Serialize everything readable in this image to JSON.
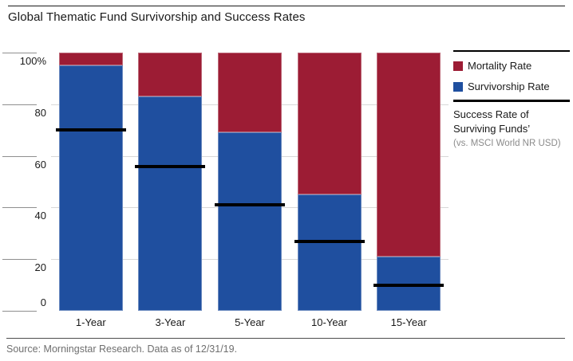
{
  "chart_data": {
    "type": "bar",
    "stacked": true,
    "title": "Global Thematic Fund Survivorship and Success Rates",
    "source": "Source: Morningstar Research. Data as of 12/31/19.",
    "categories": [
      "1-Year",
      "3-Year",
      "5-Year",
      "10-Year",
      "15-Year"
    ],
    "series": [
      {
        "name": "Survivorship Rate",
        "color": "#1F4F9F",
        "values": [
          95,
          83,
          69,
          45,
          21
        ]
      },
      {
        "name": "Mortality Rate",
        "color": "#9C1C34",
        "values": [
          5,
          17,
          31,
          55,
          79
        ]
      }
    ],
    "marker_series": {
      "name": "Success Rate of Surviving Funds’",
      "note": "(vs. MSCI World NR USD)",
      "color": "#000000",
      "values": [
        70,
        56,
        41,
        27,
        10
      ]
    },
    "yaxis": {
      "min": 0,
      "max": 100,
      "ticks": [
        {
          "label": "100%",
          "value": 100
        },
        {
          "label": "80",
          "value": 80
        },
        {
          "label": "60",
          "value": 60
        },
        {
          "label": "40",
          "value": 40
        },
        {
          "label": "20",
          "value": 20
        },
        {
          "label": "0",
          "value": 0
        }
      ]
    },
    "gridlines": [
      80,
      60,
      40,
      20
    ],
    "legend_position": "top-right"
  }
}
